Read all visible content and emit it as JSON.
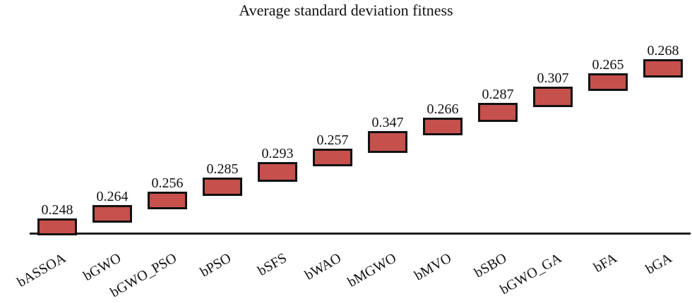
{
  "title": "Average standard deviation fitness",
  "chart_data": {
    "type": "bar",
    "subtype": "floating-bars-staircase",
    "title": "Average standard deviation fitness",
    "categories": [
      "bASSOA",
      "bGWO",
      "bGWO_PSO",
      "bPSO",
      "bSFS",
      "bWAO",
      "bMGWO",
      "bMVO",
      "bSBO",
      "bGWO_GA",
      "bFA",
      "bGA"
    ],
    "values": [
      0.248,
      0.264,
      0.256,
      0.285,
      0.293,
      0.257,
      0.347,
      0.266,
      0.287,
      0.307,
      0.265,
      0.268
    ],
    "value_labels": [
      "0.248",
      "0.264",
      "0.256",
      "0.285",
      "0.293",
      "0.257",
      "0.347",
      "0.266",
      "0.287",
      "0.307",
      "0.265",
      "0.268"
    ],
    "stacking_note": "each bar floats at the cumulative sum of previous values (staircase), bar height proportional to its own value",
    "bar_fill_color": "#C6504C",
    "bar_border_color": "#111111",
    "axis_line_color": "#1f1f1f",
    "text_color": "#111111",
    "x_label_rotation_deg": -30,
    "legend": "none",
    "gridlines": false,
    "y_axis": "hidden",
    "data_labels": "above each bar"
  }
}
